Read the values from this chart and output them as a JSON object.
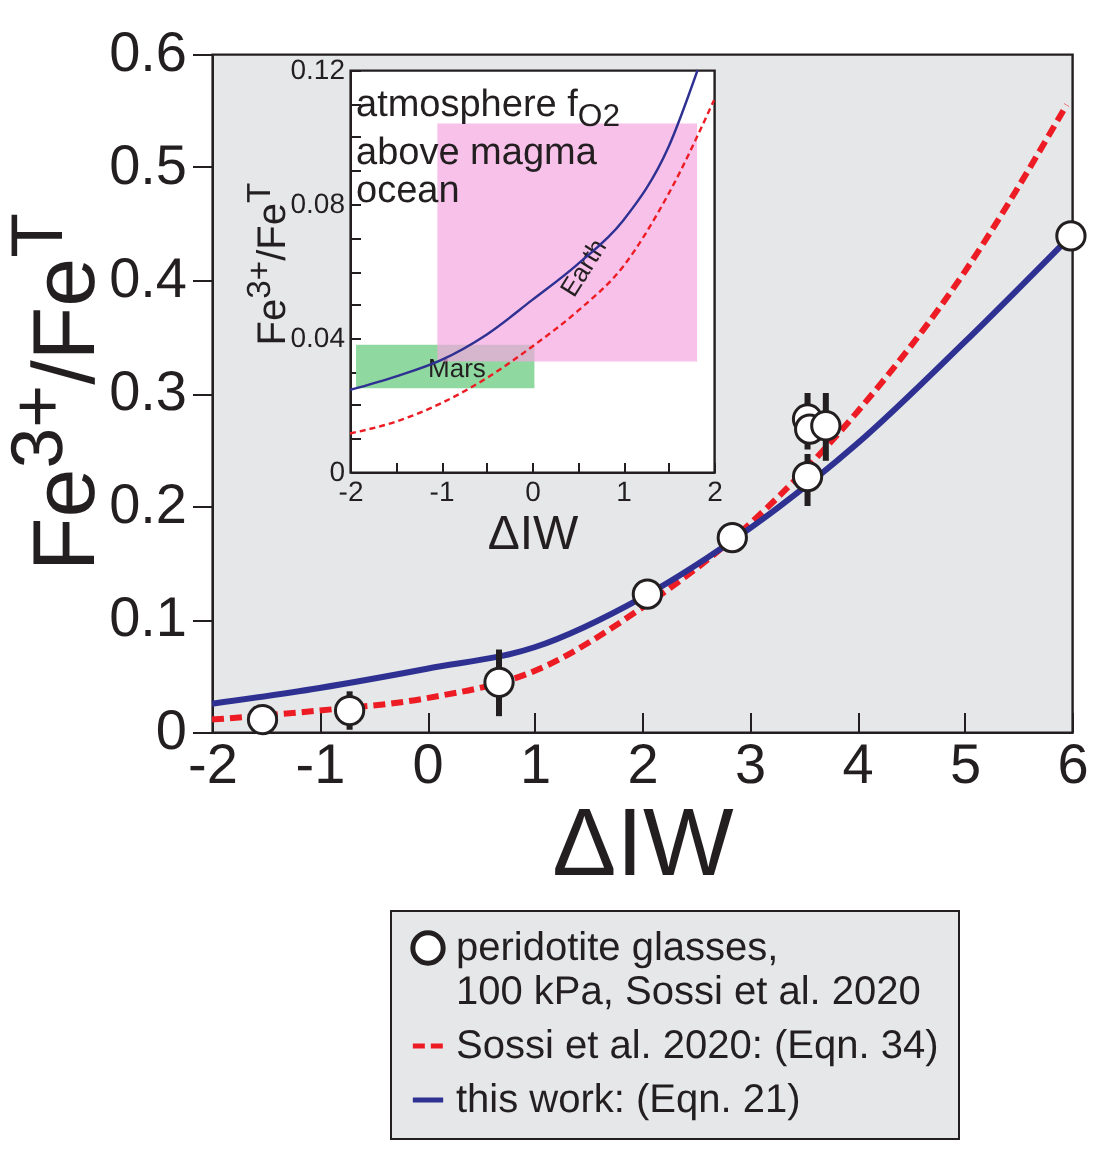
{
  "chart_data": [
    {
      "type": "line",
      "xlabel": "ΔIW",
      "ylabel": "Fe$^{3+}$/Fe$^{T}$",
      "xlim": [
        -2,
        6
      ],
      "xticks": [
        -2,
        -1,
        0,
        1,
        2,
        3,
        4,
        5,
        6
      ],
      "ylim": [
        0,
        0.6
      ],
      "yticks": [
        0,
        0.1,
        0.2,
        0.3,
        0.4,
        0.5,
        0.6
      ],
      "legend": "bottom",
      "series": [
        {
          "name": "peridotite glasses,\n100 kPa, Sossi et al. 2020",
          "type": "scatter",
          "marker": "circle",
          "color": "#231f20",
          "x": [
            -1.53,
            -0.72,
            0.67,
            2.05,
            2.84,
            3.54,
            3.54,
            3.56,
            3.71,
            5.99
          ],
          "values": [
            0.011,
            0.019,
            0.044,
            0.122,
            0.172,
            0.226,
            0.277,
            0.268,
            0.271,
            0.439
          ],
          "errors": [
            null,
            [
              0.002,
              0.036
            ],
            [
              0.014,
              0.073
            ],
            null,
            null,
            [
              0.2,
              0.246
            ],
            [
              0.25,
              0.3
            ],
            null,
            [
              0.24,
              0.3
            ],
            null
          ]
        },
        {
          "name": "Sossi et al. 2020: (Eqn. 34)",
          "type": "line",
          "line_style": "dashed",
          "color": "#ed1c24",
          "x": [
            -2,
            -1,
            0,
            1,
            2,
            3,
            4,
            5,
            5.95
          ],
          "values": [
            0.011,
            0.019,
            0.03,
            0.054,
            0.11,
            0.184,
            0.283,
            0.407,
            0.555
          ]
        },
        {
          "name": "this work: (Eqn. 21)",
          "type": "line",
          "color": "#2e3192",
          "x": [
            -2,
            -1,
            0,
            1,
            2,
            3,
            4,
            5,
            6
          ],
          "values": [
            0.025,
            0.039,
            0.056,
            0.075,
            0.119,
            0.18,
            0.255,
            0.345,
            0.44
          ]
        }
      ]
    },
    {
      "type": "line",
      "xlabel": "ΔIW",
      "ylabel": "Fe$^{3+}$/Fe$^{T}$",
      "xlim": [
        -2,
        2
      ],
      "xticks": [
        -2,
        {
          "value": -1.5,
          "label": null
        },
        -1,
        {
          "value": -0.5,
          "label": null
        },
        0,
        {
          "value": 0.5,
          "label": null
        },
        1,
        {
          "value": 1.5,
          "label": null
        },
        2
      ],
      "ylim": [
        0,
        0.12
      ],
      "yticks": [
        0,
        {
          "value": 0.01,
          "label": null
        },
        {
          "value": 0.02,
          "label": null
        },
        {
          "value": 0.03,
          "label": null
        },
        0.04,
        {
          "value": 0.05,
          "label": null
        },
        {
          "value": 0.06,
          "label": null
        },
        {
          "value": 0.07,
          "label": null
        },
        0.08,
        {
          "value": 0.09,
          "label": null
        },
        {
          "value": 0.1,
          "label": null
        },
        {
          "value": 0.11,
          "label": null
        },
        0.12
      ],
      "annotations": [
        "atmosphere f$_{O2}$\nabove magma\nocean"
      ],
      "bands": [
        {
          "axis": "y",
          "from": 0.025,
          "to": 0.038,
          "label": "Mars",
          "color": "#8fd9a0"
        },
        {
          "axis": "y",
          "from": 0.033,
          "to": 0.104,
          "label": "Earth",
          "color": "#f4a6e0"
        }
      ],
      "series": [
        {
          "color": "#2e3192",
          "x": [
            -2,
            -1.5,
            -1,
            -0.5,
            0,
            0.5,
            1,
            1.5,
            1.82
          ],
          "values": [
            0.0245,
            0.0285,
            0.0334,
            0.041,
            0.0513,
            0.062,
            0.075,
            0.097,
            0.12
          ]
        },
        {
          "color": "#ed1c24",
          "line_style": "dashed",
          "x": [
            -2,
            -1.5,
            -1,
            -0.5,
            0,
            0.5,
            1,
            1.5,
            2
          ],
          "values": [
            0.0115,
            0.015,
            0.0205,
            0.028,
            0.0374,
            0.048,
            0.0613,
            0.083,
            0.111
          ]
        }
      ]
    }
  ]
}
